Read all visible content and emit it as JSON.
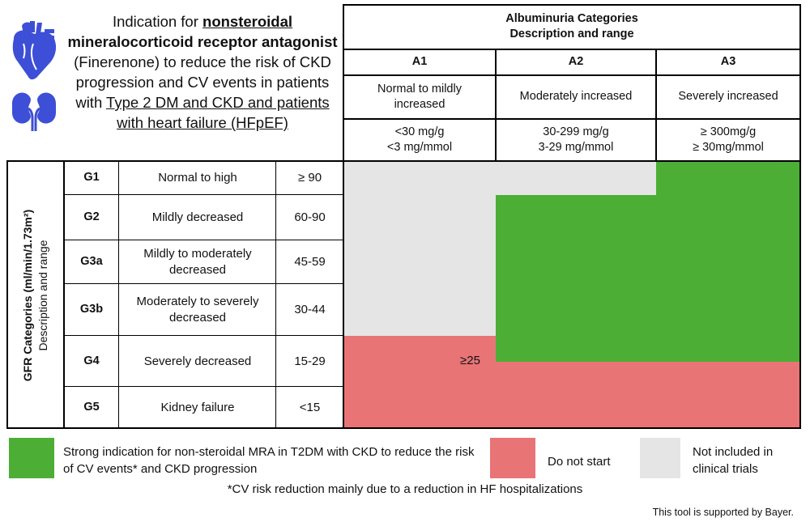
{
  "title": {
    "part1": "Indication for ",
    "part2": "nonsteroidal",
    "part3": "mineralocorticoid receptor antagonist",
    "part4": "(Finerenone) to reduce the risk of CKD progression and CV events in patients with ",
    "part5": "Type 2 DM and CKD and patients with heart failure (HFpEF)"
  },
  "icons": {
    "heart": "heart-icon",
    "kidney": "kidney-icon"
  },
  "colors": {
    "green": "#4cae35",
    "red": "#e87476",
    "gray": "#e5e5e5",
    "icon": "#3d4fd6"
  },
  "albuminuria": {
    "title_line1": "Albuminuria Categories",
    "title_line2": "Description and range",
    "columns": [
      {
        "code": "A1",
        "desc": "Normal to mildly increased",
        "range1": "<30 mg/g",
        "range2": "<3 mg/mmol"
      },
      {
        "code": "A2",
        "desc": "Moderately increased",
        "range1": "30-299 mg/g",
        "range2": "3-29 mg/mmol"
      },
      {
        "code": "A3",
        "desc": "Severely increased",
        "range1": "≥ 300mg/g",
        "range2": "≥ 30mg/mmol"
      }
    ]
  },
  "gfr": {
    "title": "GFR Categories (ml/min/1.73m²)",
    "subtitle": "Description and range",
    "rows": [
      {
        "code": "G1",
        "desc": "Normal to high",
        "range": "≥ 90",
        "cells": [
          "gray",
          "gray",
          "green"
        ]
      },
      {
        "code": "G2",
        "desc": "Mildly decreased",
        "range": "60-90",
        "cells": [
          "gray",
          "green",
          "green"
        ]
      },
      {
        "code": "G3a",
        "desc": "Mildly to moderately decreased",
        "range": "45-59",
        "cells": [
          "gray",
          "green",
          "green"
        ]
      },
      {
        "code": "G3b",
        "desc": "Moderately to severely decreased",
        "range": "30-44",
        "cells": [
          "gray",
          "green",
          "green"
        ]
      },
      {
        "code": "G4",
        "desc": "Severely decreased",
        "range": "15-29",
        "cells": [
          "red",
          "split",
          "split"
        ],
        "split_top": "green",
        "split_bottom": "red",
        "annotation": "≥25"
      },
      {
        "code": "G5",
        "desc": "Kidney failure",
        "range": "<15",
        "cells": [
          "red",
          "red",
          "red"
        ]
      }
    ]
  },
  "legend": {
    "green": "Strong indication for non-steroidal MRA in T2DM with CKD to reduce the risk of CV events* and CKD progression",
    "red": "Do not start",
    "gray": "Not included in clinical trials"
  },
  "footnote": "*CV risk reduction mainly due to a reduction in HF hospitalizations",
  "support": "This tool is supported by Bayer."
}
